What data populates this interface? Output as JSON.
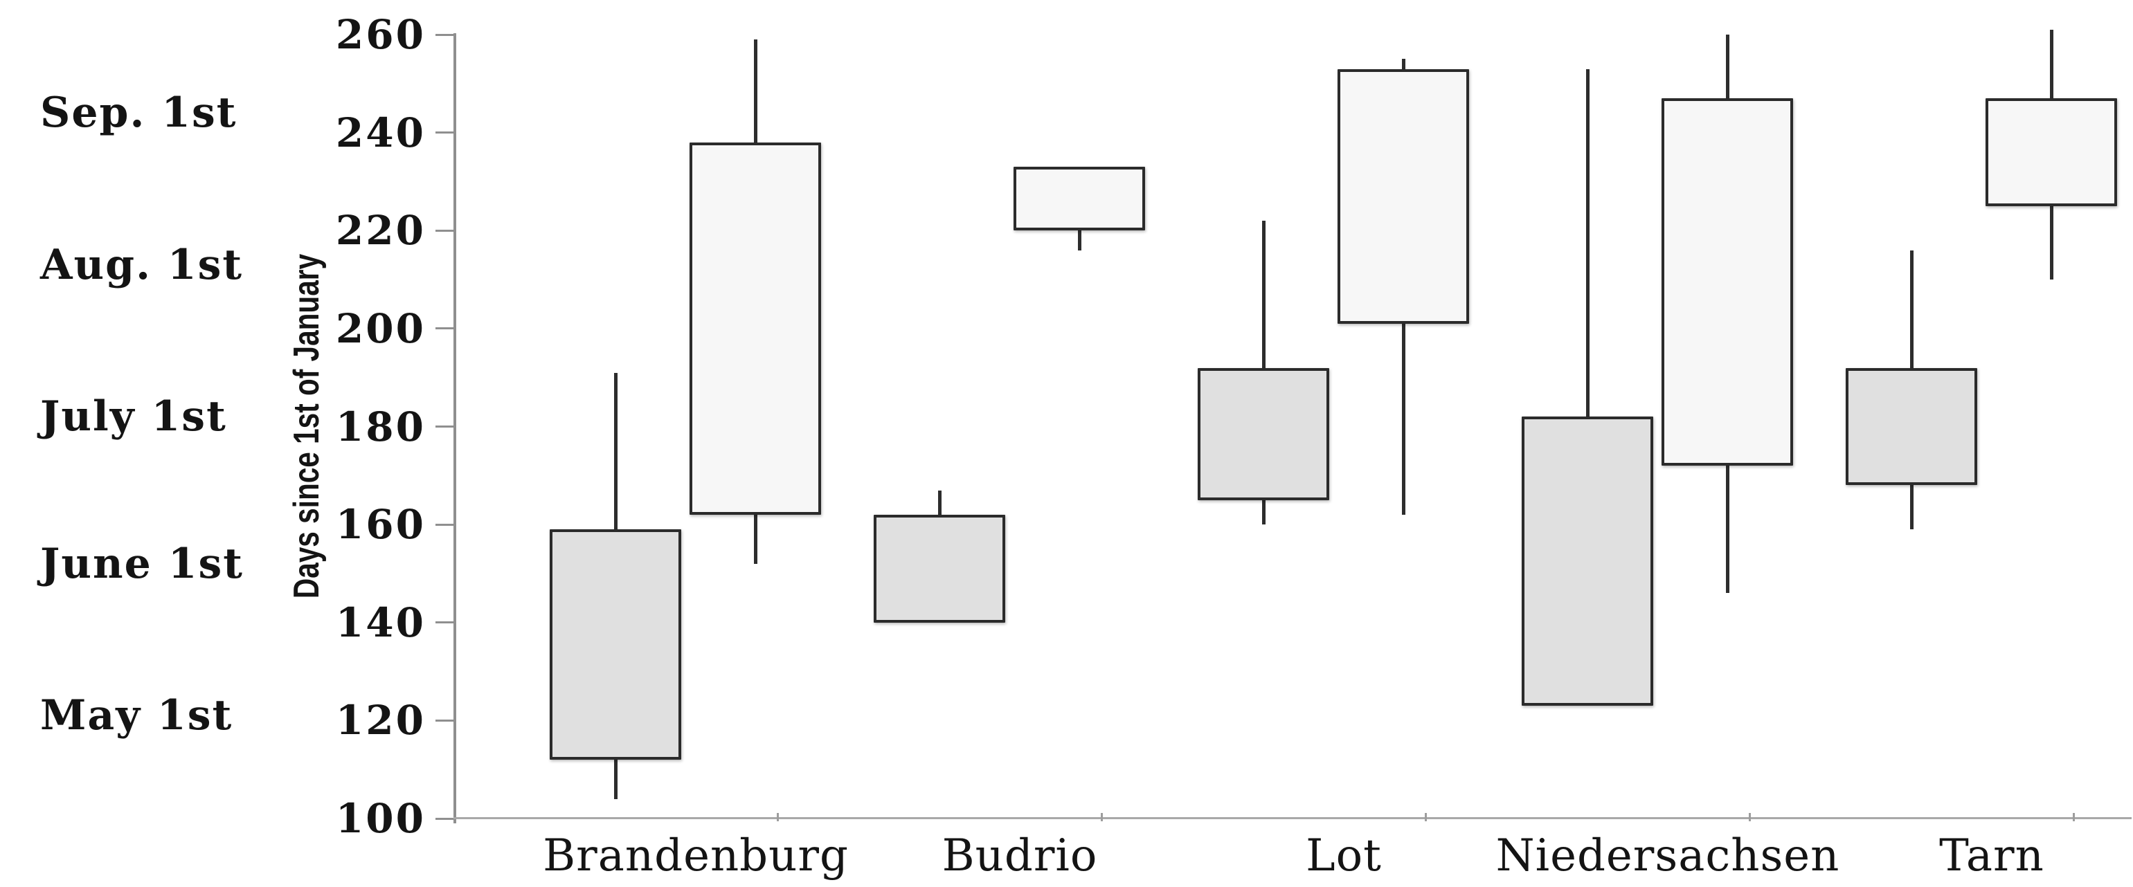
{
  "chart_data": {
    "type": "boxplot",
    "subtype": "floating box with whiskers (candlestick style), two boxes per category",
    "title": "",
    "xlabel": "",
    "ylabel": "Days since 1st of January",
    "ylim": [
      100,
      260
    ],
    "ytick_step": 20,
    "yticks": [
      100,
      120,
      140,
      160,
      180,
      200,
      220,
      240,
      260
    ],
    "grid": false,
    "legend": false,
    "categories": [
      "Brandenburg",
      "Budrio",
      "Lot",
      "Niedersachsen",
      "Tarn"
    ],
    "secondary_axis_labels": [
      {
        "label": "Sep. 1st",
        "day": 244
      },
      {
        "label": "Aug. 1st",
        "day": 213
      },
      {
        "label": "July 1st",
        "day": 182
      },
      {
        "label": "June 1st",
        "day": 152
      },
      {
        "label": "May 1st",
        "day": 121
      }
    ],
    "series": [
      {
        "name": "gray_boxes",
        "fill": "#e0e0e0",
        "border": "#2b2b2b",
        "data": [
          {
            "category": "Brandenburg",
            "low": 104,
            "box_bottom": 112,
            "box_top": 159,
            "high": 191
          },
          {
            "category": "Budrio",
            "low": 140,
            "box_bottom": 140,
            "box_top": 162,
            "high": 167
          },
          {
            "category": "Lot",
            "low": 160,
            "box_bottom": 165,
            "box_top": 192,
            "high": 222
          },
          {
            "category": "Niedersachsen",
            "low": 123,
            "box_bottom": 123,
            "box_top": 182,
            "high": 253
          },
          {
            "category": "Tarn",
            "low": 159,
            "box_bottom": 168,
            "box_top": 192,
            "high": 216
          }
        ]
      },
      {
        "name": "white_boxes",
        "fill": "#f7f7f7",
        "border": "#2b2b2b",
        "data": [
          {
            "category": "Brandenburg",
            "low": 152,
            "box_bottom": 162,
            "box_top": 238,
            "high": 259
          },
          {
            "category": "Budrio",
            "low": 216,
            "box_bottom": 220,
            "box_top": 233,
            "high": 233
          },
          {
            "category": "Lot",
            "low": 162,
            "box_bottom": 201,
            "box_top": 253,
            "high": 255
          },
          {
            "category": "Niedersachsen",
            "low": 146,
            "box_bottom": 172,
            "box_top": 247,
            "high": 260
          },
          {
            "category": "Tarn",
            "low": 210,
            "box_bottom": 225,
            "box_top": 247,
            "high": 261
          }
        ]
      }
    ]
  }
}
